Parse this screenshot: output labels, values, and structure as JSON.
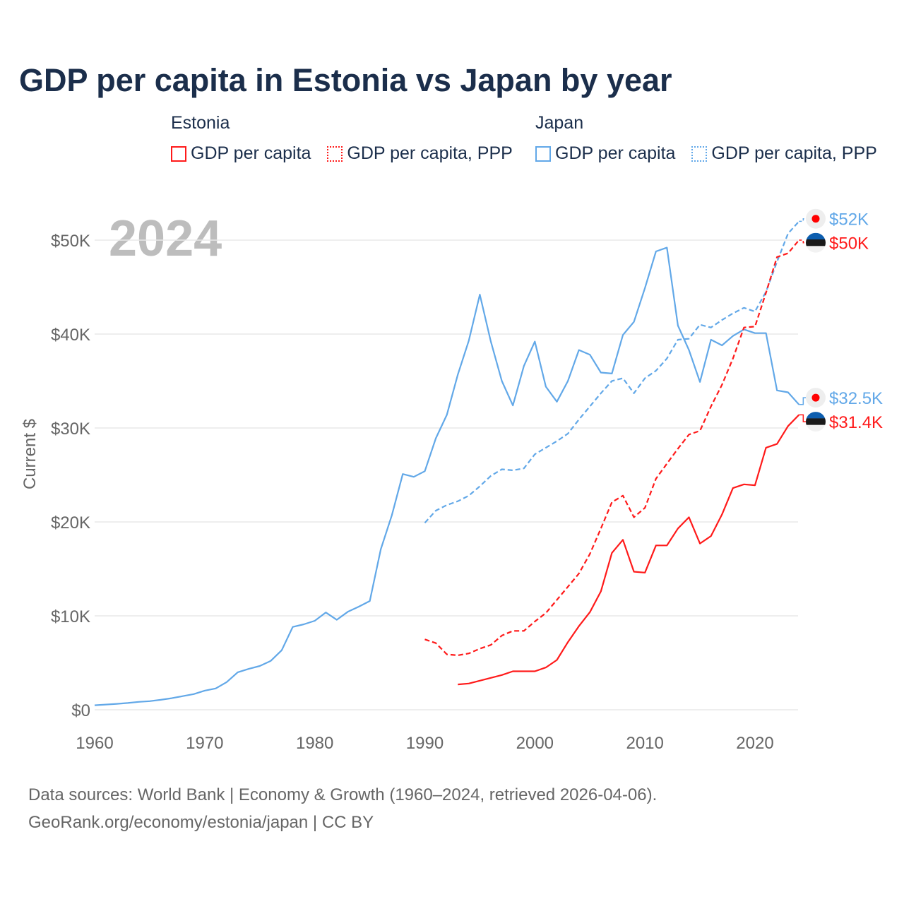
{
  "colors": {
    "estonia": "#ff1a1a",
    "japan": "#62a8e8",
    "title": "#1b2e4b",
    "grid": "#e8e8e8",
    "axis_text": "#666666",
    "year_watermark": "#bdbdbd"
  },
  "legend": {
    "groups": [
      {
        "name": "Estonia",
        "items": [
          {
            "label": "GDP per capita",
            "style": "solid",
            "color": "#ff1a1a"
          },
          {
            "label": "GDP per capita, PPP",
            "style": "dotted",
            "color": "#ff1a1a"
          }
        ]
      },
      {
        "name": "Japan",
        "items": [
          {
            "label": "GDP per capita",
            "style": "solid",
            "color": "#62a8e8"
          },
          {
            "label": "GDP per capita, PPP",
            "style": "dotted",
            "color": "#62a8e8"
          }
        ]
      }
    ]
  },
  "footer": {
    "line1": "Data sources: World Bank | Economy & Growth (1960–2024, retrieved 2026-04-06).",
    "line2": "GeoRank.org/economy/estonia/japan | CC BY"
  },
  "chart_data": {
    "type": "line",
    "title": "GDP per capita in Estonia vs Japan by year",
    "year_label": "2024",
    "xlabel": "",
    "ylabel": "Current $",
    "xlim": [
      1960,
      2024
    ],
    "ylim": [
      0,
      53000
    ],
    "x_ticks": [
      1960,
      1970,
      1980,
      1990,
      2000,
      2010,
      2020
    ],
    "x_tick_labels": [
      "1960",
      "1970",
      "1980",
      "1990",
      "2000",
      "2010",
      "2020"
    ],
    "y_ticks": [
      0,
      10000,
      20000,
      30000,
      40000,
      50000
    ],
    "y_tick_labels": [
      "$0",
      "$10K",
      "$20K",
      "$30K",
      "$40K",
      "$50K"
    ],
    "grid": true,
    "legend_position": "top",
    "series": [
      {
        "name": "Japan GDP per capita",
        "country": "japan",
        "dash": false,
        "start": 1960,
        "end_label": "$32.5K",
        "values": [
          480,
          560,
          630,
          720,
          840,
          920,
          1060,
          1230,
          1450,
          1670,
          2040,
          2270,
          2950,
          3990,
          4350,
          4660,
          5200,
          6340,
          8820,
          9100,
          9470,
          10360,
          9580,
          10430,
          10980,
          11580,
          17100,
          20700,
          25100,
          24800,
          25400,
          28900,
          31400,
          35700,
          39300,
          44200,
          39200,
          35000,
          32400,
          36600,
          39200,
          34400,
          32800,
          35000,
          38300,
          37800,
          35900,
          35800,
          39900,
          41300,
          44900,
          48800,
          49200,
          40900,
          38300,
          34900,
          39400,
          38800,
          39800,
          40500,
          40100,
          40100,
          34000,
          33800,
          32500
        ]
      },
      {
        "name": "Japan GDP per capita, PPP",
        "country": "japan",
        "dash": true,
        "start": 1990,
        "end_label": "$52K",
        "values": [
          19900,
          21200,
          21800,
          22200,
          22800,
          23800,
          24900,
          25600,
          25500,
          25700,
          27200,
          27900,
          28600,
          29400,
          30900,
          32300,
          33700,
          35000,
          35300,
          33700,
          35300,
          36100,
          37400,
          39400,
          39500,
          41000,
          40700,
          41500,
          42200,
          42800,
          42400,
          44500,
          47700,
          50700,
          52000
        ]
      },
      {
        "name": "Estonia GDP per capita",
        "country": "estonia",
        "dash": false,
        "start": 1993,
        "end_label": "$31.4K",
        "values": [
          2700,
          2800,
          3100,
          3400,
          3700,
          4100,
          4100,
          4100,
          4500,
          5300,
          7200,
          8900,
          10400,
          12600,
          16700,
          18100,
          14700,
          14600,
          17500,
          17500,
          19300,
          20500,
          17700,
          18500,
          20800,
          23600,
          24000,
          23900,
          27900,
          28300,
          30200,
          31400
        ]
      },
      {
        "name": "Estonia GDP per capita, PPP",
        "country": "estonia",
        "dash": true,
        "start": 1990,
        "end_label": "$50K",
        "values": [
          7500,
          7100,
          5900,
          5800,
          6000,
          6500,
          6900,
          7900,
          8400,
          8400,
          9400,
          10300,
          11700,
          13100,
          14500,
          16600,
          19300,
          22100,
          22800,
          20500,
          21500,
          24600,
          26200,
          27800,
          29300,
          29700,
          32300,
          34600,
          37400,
          40700,
          40800,
          44400,
          48200,
          48600,
          50000
        ]
      }
    ]
  }
}
